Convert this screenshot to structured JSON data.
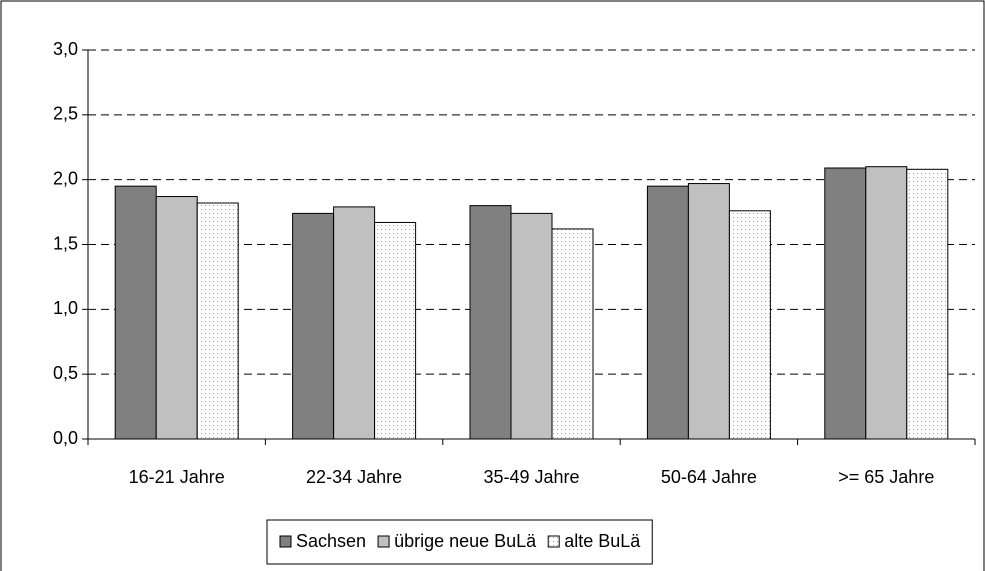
{
  "chart_data": {
    "type": "bar",
    "categories": [
      "16-21 Jahre",
      "22-34 Jahre",
      "35-49 Jahre",
      "50-64 Jahre",
      ">= 65 Jahre"
    ],
    "series": [
      {
        "name": "Sachsen",
        "color": "#808080",
        "values": [
          1.95,
          1.74,
          1.8,
          1.95,
          2.09
        ]
      },
      {
        "name": "übrige neue BuLä",
        "color": "#c0c0c0",
        "values": [
          1.87,
          1.79,
          1.74,
          1.97,
          2.1
        ]
      },
      {
        "name": "alte BuLä",
        "color": "#ffffff",
        "fill_pattern": "dots",
        "values": [
          1.82,
          1.67,
          1.62,
          1.76,
          2.08
        ]
      }
    ],
    "ylim": [
      0,
      3
    ],
    "yticks": [
      {
        "value": 0,
        "label": "0,0"
      },
      {
        "value": 0.5,
        "label": "0,5"
      },
      {
        "value": 1,
        "label": "1,0"
      },
      {
        "value": 1.5,
        "label": "1,5"
      },
      {
        "value": 2,
        "label": "2,0"
      },
      {
        "value": 2.5,
        "label": "2,5"
      },
      {
        "value": 3,
        "label": "3,0"
      }
    ],
    "grid": true,
    "legend": "bottom"
  }
}
